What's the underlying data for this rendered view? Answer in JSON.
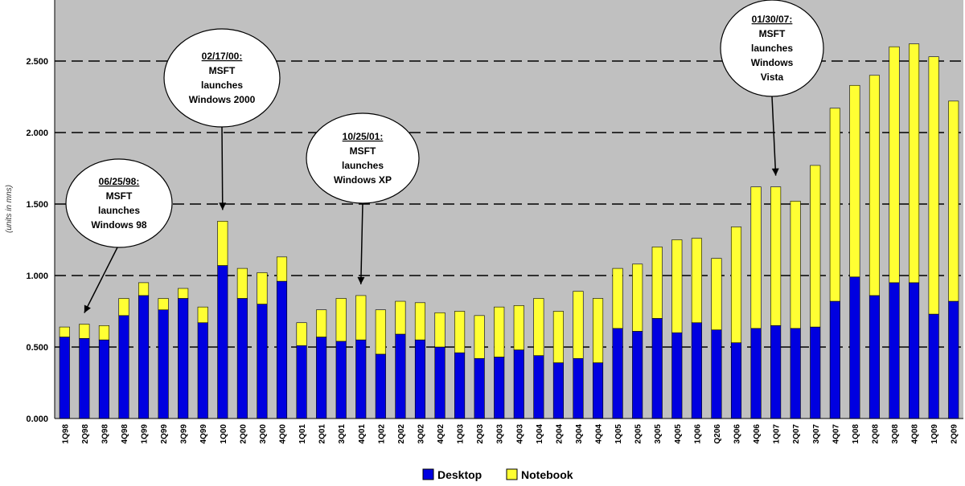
{
  "chart_data": {
    "type": "bar",
    "stacked": true,
    "ylabel": "(units in mns)",
    "ylim": [
      0,
      2.8
    ],
    "y_ticks": [
      "0.000",
      "0.500",
      "1.000",
      "1.500",
      "2.000",
      "2.500"
    ],
    "y_tick_values": [
      0,
      0.5,
      1.0,
      1.5,
      2.0,
      2.5
    ],
    "grid": "horizontal dashed",
    "legend_position": "bottom",
    "colors": {
      "plot_background": "#c0c0c0",
      "gridline": "#000000",
      "Desktop": "#0000e0",
      "Notebook": "#ffff33"
    },
    "categories": [
      "1Q98",
      "2Q98",
      "3Q98",
      "4Q98",
      "1Q99",
      "2Q99",
      "3Q99",
      "4Q99",
      "1Q00",
      "2Q00",
      "3Q00",
      "4Q00",
      "1Q01",
      "2Q01",
      "3Q01",
      "4Q01",
      "1Q02",
      "2Q02",
      "3Q02",
      "4Q02",
      "1Q03",
      "2Q03",
      "3Q03",
      "4Q03",
      "1Q04",
      "2Q04",
      "3Q04",
      "4Q04",
      "1Q05",
      "2Q05",
      "3Q05",
      "4Q05",
      "1Q06",
      "Q206",
      "3Q06",
      "4Q06",
      "1Q07",
      "2Q07",
      "3Q07",
      "4Q07",
      "1Q08",
      "2Q08",
      "3Q08",
      "4Q08",
      "1Q09",
      "2Q09"
    ],
    "series": [
      {
        "name": "Desktop",
        "values": [
          0.57,
          0.56,
          0.55,
          0.72,
          0.86,
          0.76,
          0.84,
          0.67,
          1.07,
          0.84,
          0.8,
          0.96,
          0.51,
          0.57,
          0.54,
          0.55,
          0.45,
          0.59,
          0.55,
          0.5,
          0.46,
          0.42,
          0.43,
          0.48,
          0.44,
          0.39,
          0.42,
          0.39,
          0.63,
          0.61,
          0.7,
          0.6,
          0.67,
          0.62,
          0.53,
          0.63,
          0.65,
          0.63,
          0.64,
          0.82,
          0.99,
          0.86,
          0.95,
          0.95,
          0.73,
          0.82
        ]
      },
      {
        "name": "Notebook",
        "values": [
          0.07,
          0.1,
          0.1,
          0.12,
          0.09,
          0.08,
          0.07,
          0.11,
          0.31,
          0.21,
          0.22,
          0.17,
          0.16,
          0.19,
          0.3,
          0.31,
          0.31,
          0.23,
          0.26,
          0.24,
          0.29,
          0.3,
          0.35,
          0.31,
          0.4,
          0.36,
          0.47,
          0.45,
          0.42,
          0.47,
          0.5,
          0.65,
          0.59,
          0.5,
          0.81,
          0.99,
          0.97,
          0.89,
          1.13,
          1.35,
          1.34,
          1.54,
          1.65,
          1.67,
          1.8,
          1.4
        ]
      }
    ],
    "annotations": [
      {
        "date": "06/25/98:",
        "lines": [
          "MSFT",
          "launches",
          "Windows 98"
        ],
        "category": "2Q98"
      },
      {
        "date": "02/17/00:",
        "lines": [
          "MSFT",
          "launches",
          "Windows 2000"
        ],
        "category": "1Q00"
      },
      {
        "date": "10/25/01:",
        "lines": [
          "MSFT",
          "launches",
          "Windows XP"
        ],
        "category": "4Q01"
      },
      {
        "date": "01/30/07:",
        "lines": [
          "MSFT",
          "launches",
          "Windows",
          "Vista"
        ],
        "category": "1Q07"
      }
    ],
    "legend": [
      {
        "label": "Desktop",
        "color": "#0000e0"
      },
      {
        "label": "Notebook",
        "color": "#ffff33"
      }
    ]
  }
}
